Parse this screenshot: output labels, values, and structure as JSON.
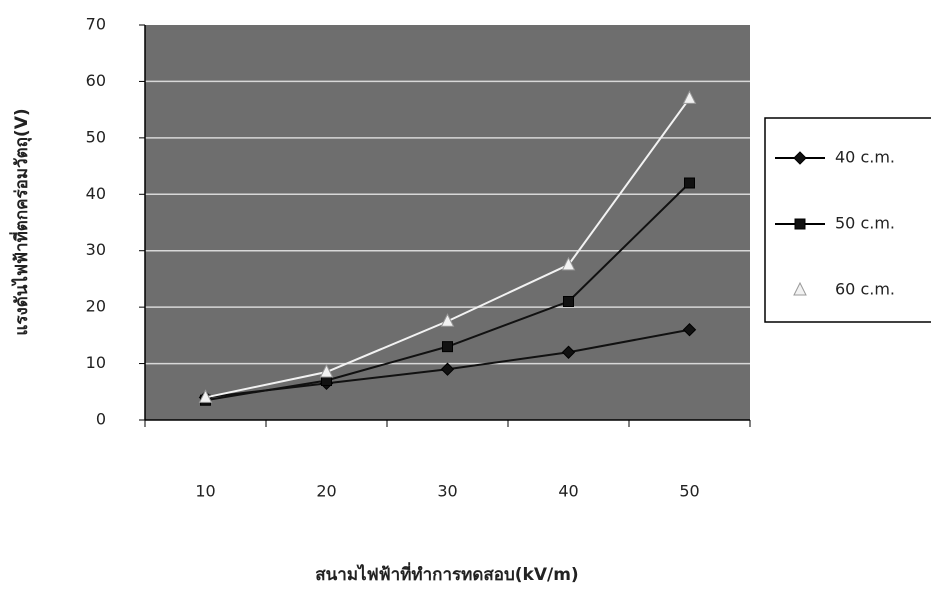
{
  "chart_data": {
    "type": "line",
    "x_label": "สนามไฟฟ้าที่ทำการทดสอบ(kV/m)",
    "y_label": "แรงดันไฟฟ้าที่ตกคร่อมวัตถุ(V)",
    "categories": [
      "10",
      "20",
      "30",
      "40",
      "50"
    ],
    "series": [
      {
        "name": "40 c.m.",
        "color": "#111111",
        "marker": "diamond",
        "values": [
          4,
          6.5,
          9,
          12,
          16
        ]
      },
      {
        "name": "50 c.m.",
        "color": "#111111",
        "marker": "square",
        "values": [
          3.5,
          7,
          13,
          21,
          42
        ]
      },
      {
        "name": "60 c.m.",
        "color": "#f2f2f2",
        "marker": "triangle",
        "values": [
          4,
          8.5,
          17.5,
          27.5,
          57
        ]
      }
    ],
    "ylim": [
      0,
      70
    ],
    "yticks": [
      0,
      10,
      20,
      30,
      40,
      50,
      60,
      70
    ],
    "grid": true,
    "legend": "right"
  }
}
